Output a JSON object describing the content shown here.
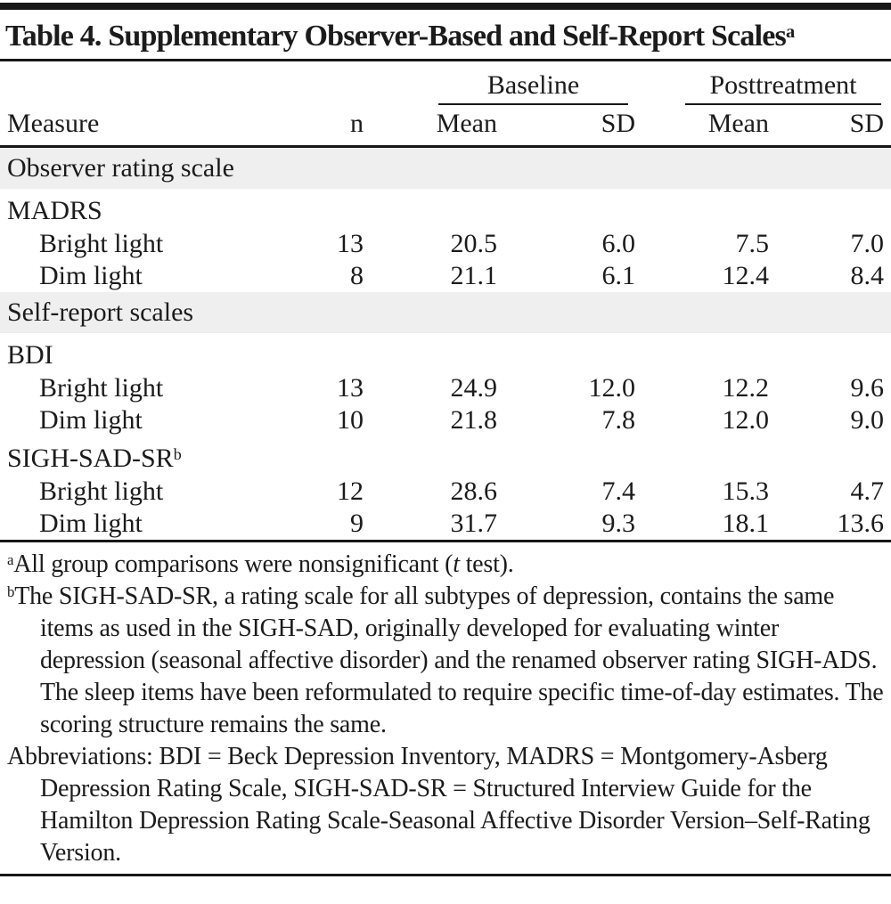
{
  "title": {
    "text": "Table 4. Supplementary Observer-Based and Self-Report Scales",
    "marker": "a"
  },
  "columns": {
    "baseline": "Baseline",
    "posttreatment": "Posttreatment",
    "measure": "Measure",
    "n": "n",
    "mean": "Mean",
    "sd": "SD"
  },
  "sections": [
    {
      "band": "Observer rating scale",
      "groups": [
        {
          "label": "MADRS",
          "marker": "",
          "rows": [
            {
              "label": "Bright light",
              "n": "13",
              "b_mean": "20.5",
              "b_sd": "6.0",
              "p_mean": "7.5",
              "p_sd": "7.0"
            },
            {
              "label": "Dim light",
              "n": "8",
              "b_mean": "21.1",
              "b_sd": "6.1",
              "p_mean": "12.4",
              "p_sd": "8.4"
            }
          ]
        }
      ]
    },
    {
      "band": "Self-report scales",
      "groups": [
        {
          "label": "BDI",
          "marker": "",
          "rows": [
            {
              "label": "Bright light",
              "n": "13",
              "b_mean": "24.9",
              "b_sd": "12.0",
              "p_mean": "12.2",
              "p_sd": "9.6"
            },
            {
              "label": "Dim light",
              "n": "10",
              "b_mean": "21.8",
              "b_sd": "7.8",
              "p_mean": "12.0",
              "p_sd": "9.0"
            }
          ]
        },
        {
          "label": "SIGH-SAD-SR",
          "marker": "b",
          "rows": [
            {
              "label": "Bright light",
              "n": "12",
              "b_mean": "28.6",
              "b_sd": "7.4",
              "p_mean": "15.3",
              "p_sd": "4.7"
            },
            {
              "label": "Dim light",
              "n": "9",
              "b_mean": "31.7",
              "b_sd": "9.3",
              "p_mean": "18.1",
              "p_sd": "13.6"
            }
          ]
        }
      ]
    }
  ],
  "footnotes": {
    "a": {
      "marker": "a",
      "pre": "All group comparisons were nonsignificant (",
      "italic": "t",
      "post": " test)."
    },
    "b": {
      "marker": "b",
      "text": "The SIGH-SAD-SR, a rating scale for all subtypes of depression, contains the same items as used in the SIGH-SAD, originally developed for evaluating winter depression (seasonal affective disorder) and the renamed observer rating SIGH-ADS. The sleep items have been reformulated to require specific time-of-day estimates. The scoring structure remains the same."
    },
    "abbreviations": "Abbreviations: BDI = Beck Depression Inventory, MADRS = Montgomery-Asberg Depression Rating Scale, SIGH-SAD-SR = Structured Interview Guide for the Hamilton Depression Rating Scale-Seasonal Affective Disorder Version–Self-Rating Version."
  }
}
